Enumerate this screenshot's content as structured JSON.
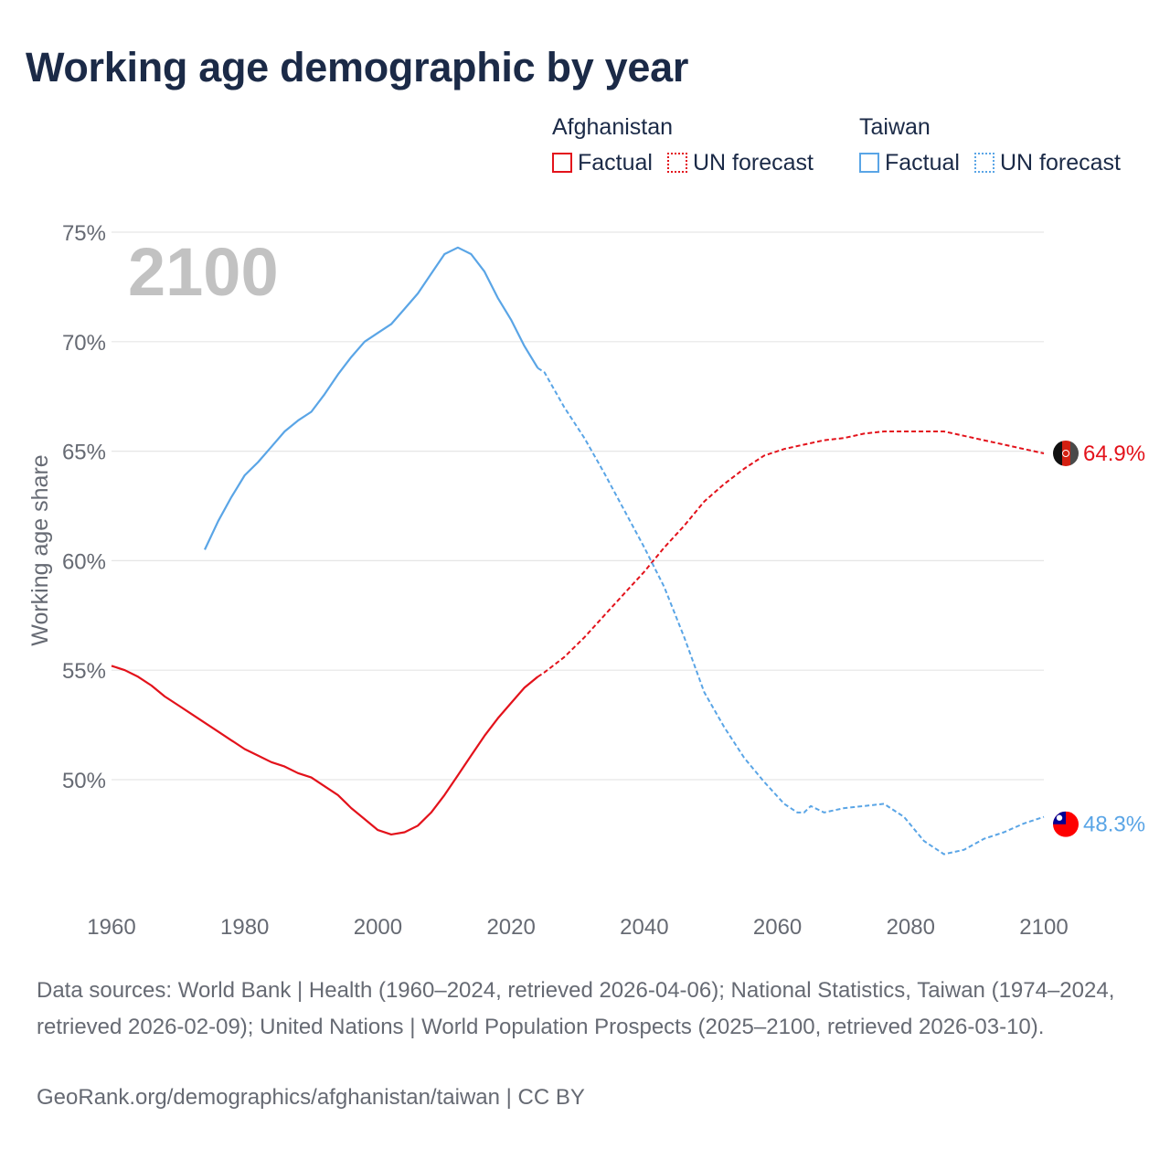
{
  "title": "Working age demographic by year",
  "legend": {
    "groups": [
      {
        "country": "Afghanistan",
        "color": "#e3121b",
        "items": [
          {
            "label": "Factual",
            "style": "solid"
          },
          {
            "label": "UN forecast",
            "style": "dotted"
          }
        ]
      },
      {
        "country": "Taiwan",
        "color": "#5aa5e6",
        "items": [
          {
            "label": "Factual",
            "style": "solid"
          },
          {
            "label": "UN forecast",
            "style": "dotted"
          }
        ]
      }
    ]
  },
  "chart_data": {
    "type": "line",
    "ylabel": "Working age share",
    "xlim": [
      1960,
      2100
    ],
    "ylim": [
      45,
      75
    ],
    "x_ticks": [
      "1960",
      "1980",
      "2000",
      "2020",
      "2040",
      "2060",
      "2080",
      "2100"
    ],
    "y_ticks": [
      {
        "value": 50,
        "label": "50%"
      },
      {
        "value": 55,
        "label": "55%"
      },
      {
        "value": 60,
        "label": "60%"
      },
      {
        "value": 65,
        "label": "65%"
      },
      {
        "value": 70,
        "label": "70%"
      },
      {
        "value": 75,
        "label": "75%"
      }
    ],
    "year_watermark": "2100",
    "series": [
      {
        "name": "Afghanistan",
        "color": "#e3121b",
        "end_label": "64.9%",
        "flag": "afghanistan-flag",
        "factual": {
          "x": [
            1960,
            1962,
            1964,
            1966,
            1968,
            1970,
            1972,
            1974,
            1976,
            1978,
            1980,
            1982,
            1984,
            1986,
            1988,
            1990,
            1992,
            1994,
            1996,
            1998,
            2000,
            2002,
            2004,
            2006,
            2008,
            2010,
            2012,
            2014,
            2016,
            2018,
            2020,
            2022,
            2024
          ],
          "y": [
            55.2,
            55.0,
            54.7,
            54.3,
            53.8,
            53.4,
            53.0,
            52.6,
            52.2,
            51.8,
            51.4,
            51.1,
            50.8,
            50.6,
            50.3,
            50.1,
            49.7,
            49.3,
            48.7,
            48.2,
            47.7,
            47.5,
            47.6,
            47.9,
            48.5,
            49.3,
            50.2,
            51.1,
            52.0,
            52.8,
            53.5,
            54.2,
            54.7
          ]
        },
        "forecast": {
          "x": [
            2025,
            2028,
            2031,
            2034,
            2037,
            2040,
            2043,
            2046,
            2049,
            2052,
            2055,
            2058,
            2061,
            2064,
            2067,
            2070,
            2073,
            2076,
            2079,
            2082,
            2085,
            2088,
            2091,
            2094,
            2097,
            2100
          ],
          "y": [
            54.9,
            55.6,
            56.5,
            57.5,
            58.5,
            59.5,
            60.6,
            61.6,
            62.7,
            63.5,
            64.2,
            64.8,
            65.1,
            65.3,
            65.5,
            65.6,
            65.8,
            65.9,
            65.9,
            65.9,
            65.9,
            65.7,
            65.5,
            65.3,
            65.1,
            64.9
          ]
        }
      },
      {
        "name": "Taiwan",
        "color": "#5aa5e6",
        "end_label": "48.3%",
        "flag": "taiwan-flag",
        "factual": {
          "x": [
            1974,
            1976,
            1978,
            1980,
            1982,
            1984,
            1986,
            1988,
            1990,
            1992,
            1994,
            1996,
            1998,
            2000,
            2002,
            2004,
            2006,
            2008,
            2010,
            2012,
            2014,
            2016,
            2018,
            2020,
            2022,
            2024
          ],
          "y": [
            60.5,
            61.8,
            62.9,
            63.9,
            64.5,
            65.2,
            65.9,
            66.4,
            66.8,
            67.6,
            68.5,
            69.3,
            70.0,
            70.4,
            70.8,
            71.5,
            72.2,
            73.1,
            74.0,
            74.3,
            74.0,
            73.2,
            72.0,
            71.0,
            69.8,
            68.8
          ]
        },
        "forecast": {
          "x": [
            2025,
            2028,
            2031,
            2034,
            2037,
            2040,
            2043,
            2046,
            2049,
            2052,
            2055,
            2058,
            2061,
            2063,
            2064,
            2065,
            2067,
            2070,
            2073,
            2076,
            2079,
            2082,
            2085,
            2088,
            2091,
            2094,
            2097,
            2100
          ],
          "y": [
            68.6,
            67.0,
            65.6,
            64.0,
            62.3,
            60.6,
            58.8,
            56.5,
            54.0,
            52.4,
            51.0,
            49.9,
            48.9,
            48.5,
            48.5,
            48.8,
            48.5,
            48.7,
            48.8,
            48.9,
            48.3,
            47.2,
            46.6,
            46.8,
            47.3,
            47.6,
            48.0,
            48.3
          ]
        }
      }
    ]
  },
  "footnote": "Data sources: World Bank | Health (1960–2024, retrieved 2026-04-06); National Statistics, Taiwan (1974–2024, retrieved 2026-02-09); United Nations | World Population Prospects (2025–2100, retrieved 2026-03-10).",
  "credit": "GeoRank.org/demographics/afghanistan/taiwan | CC BY"
}
